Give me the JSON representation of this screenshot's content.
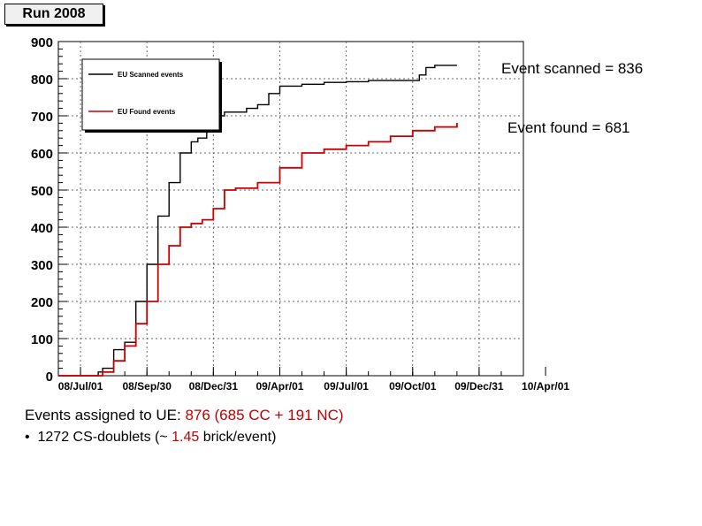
{
  "header": {
    "title": "Run 2008"
  },
  "annotations": {
    "scanned": "Event scanned = 836",
    "found": "Event found = 681"
  },
  "footer": {
    "assigned_prefix": "Events assigned to UE: ",
    "assigned_value": "876 (685 CC + 191 NC)",
    "bullet_symbol": "•",
    "bullet_prefix": "1272 CS-doublets (~ ",
    "bullet_value": "1.45",
    "bullet_suffix": " brick/event)"
  },
  "chart_data": {
    "type": "line",
    "title": "",
    "xlabel": "",
    "ylabel": "",
    "xlim": [
      0,
      21
    ],
    "ylim": [
      0,
      900
    ],
    "x_tick_labels": [
      "08/Jul/01",
      "08/Sep/30",
      "08/Dec/31",
      "09/Apr/01",
      "09/Jul/01",
      "09/Oct/01",
      "09/Dec/31",
      "10/Apr/01"
    ],
    "y_ticks": [
      0,
      100,
      200,
      300,
      400,
      500,
      600,
      700,
      800,
      900
    ],
    "grid": true,
    "legend_position": "top-left",
    "series": [
      {
        "name": "EU Scanned events",
        "color": "#000000",
        "x": [
          0,
          1.5,
          1.8,
          2.0,
          2.5,
          3.0,
          3.5,
          4.0,
          4.5,
          5.0,
          5.5,
          6.0,
          6.3,
          6.7,
          7.0,
          7.5,
          8.0,
          8.5,
          9.0,
          9.5,
          10.0,
          11.0,
          12.0,
          13.0,
          14.0,
          15.0,
          16.0,
          16.3,
          16.6,
          17.0,
          18.0
        ],
        "y": [
          0,
          0,
          10,
          20,
          70,
          90,
          200,
          300,
          430,
          520,
          600,
          630,
          640,
          660,
          700,
          710,
          710,
          720,
          730,
          760,
          780,
          785,
          790,
          792,
          795,
          795,
          795,
          810,
          830,
          836,
          836
        ]
      },
      {
        "name": "EU Found events",
        "color": "#cc0000",
        "x": [
          0,
          1.5,
          2.0,
          2.5,
          3.0,
          3.5,
          4.0,
          4.5,
          5.0,
          5.5,
          6.0,
          6.5,
          7.0,
          7.5,
          8.0,
          9.0,
          10.0,
          11.0,
          12.0,
          13.0,
          14.0,
          15.0,
          16.0,
          17.0,
          18.0
        ],
        "y": [
          0,
          0,
          10,
          40,
          80,
          140,
          200,
          300,
          350,
          400,
          410,
          420,
          450,
          500,
          505,
          520,
          560,
          600,
          610,
          620,
          630,
          645,
          660,
          670,
          681
        ]
      }
    ]
  }
}
